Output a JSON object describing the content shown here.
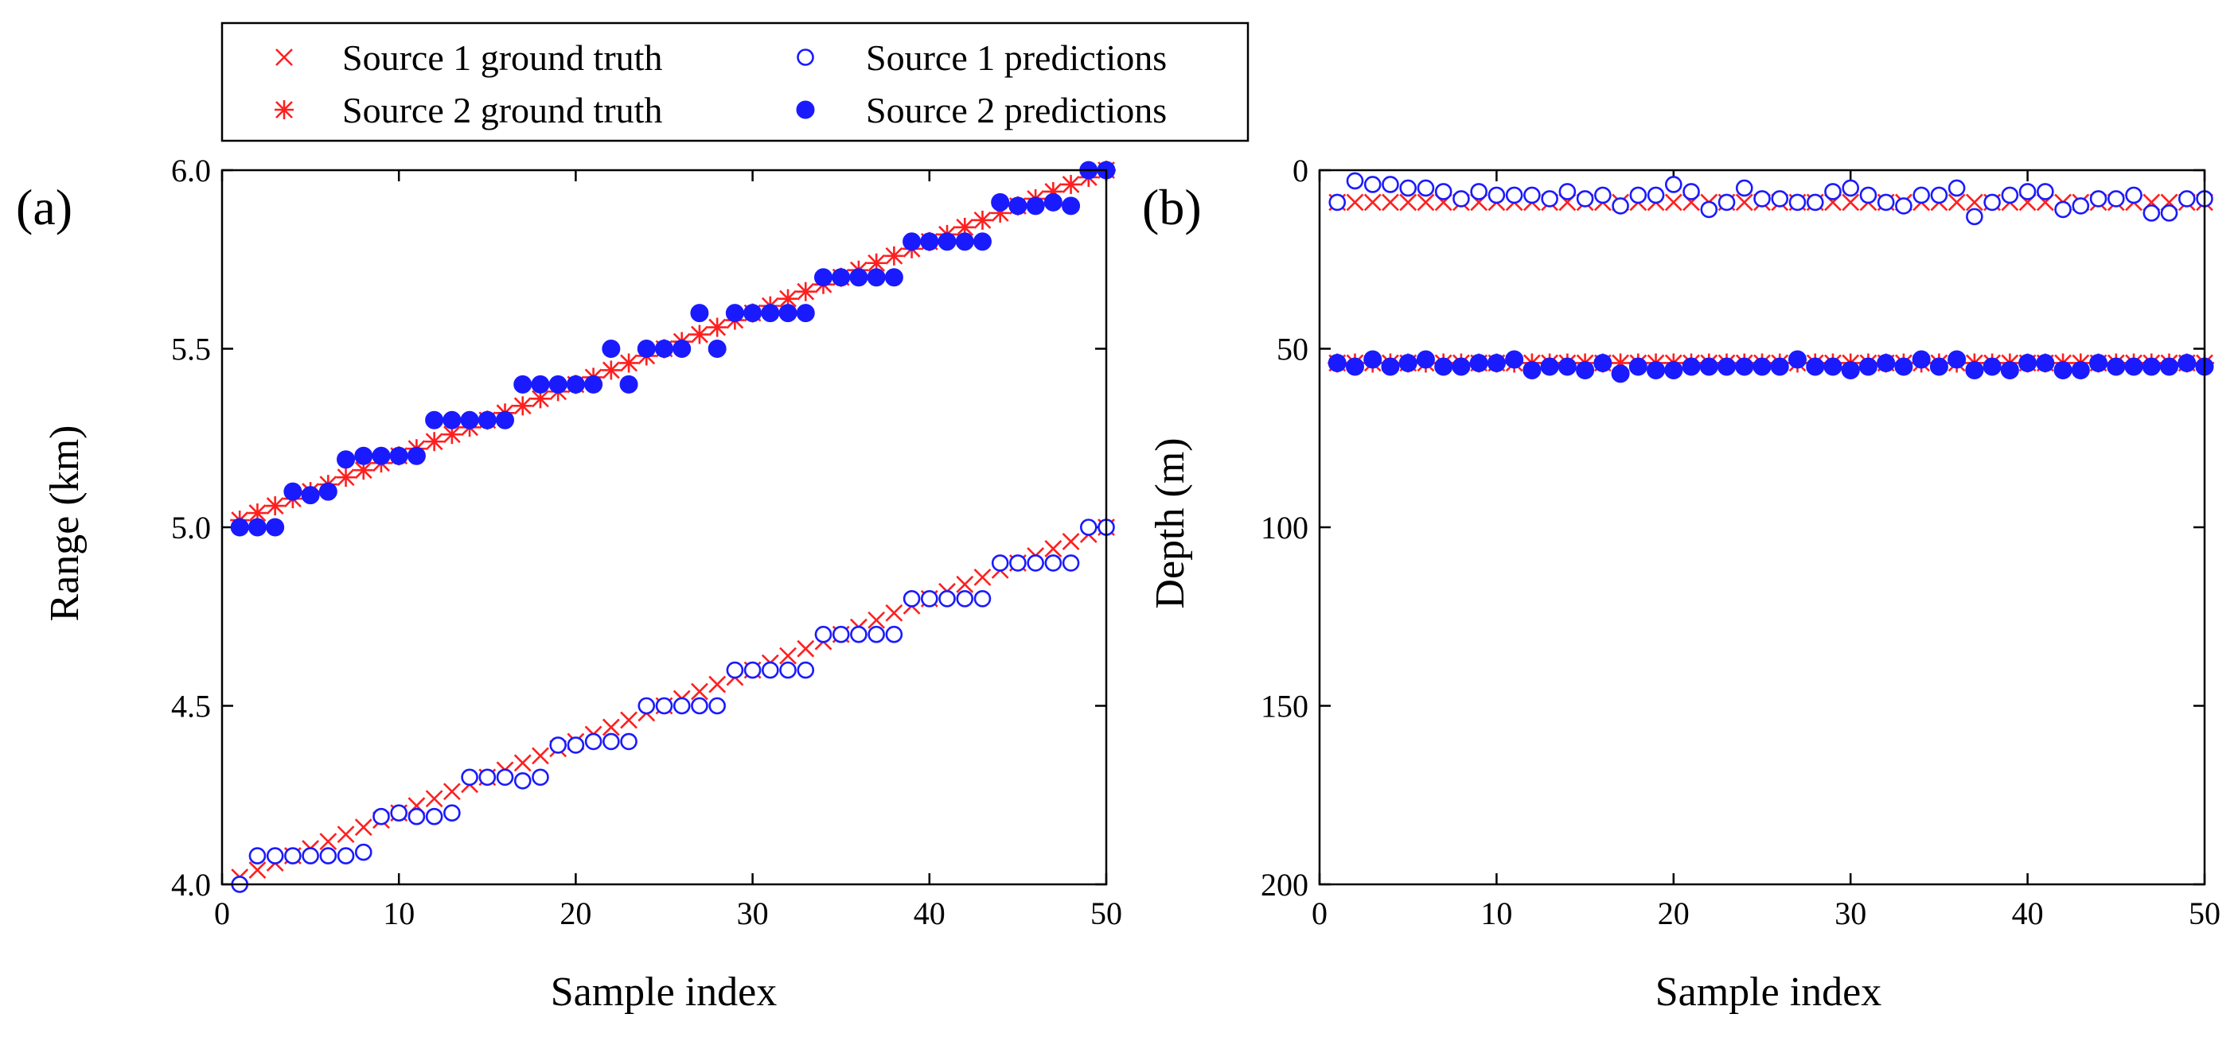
{
  "legend": {
    "entries": [
      {
        "label": "Source 1 ground truth",
        "marker": "x",
        "color": "#ff1f1f"
      },
      {
        "label": "Source 1 predictions",
        "marker": "open-circle",
        "color": "#1a1aff"
      },
      {
        "label": "Source 2 ground truth",
        "marker": "asterisk",
        "color": "#ff1f1f"
      },
      {
        "label": "Source 2 predictions",
        "marker": "filled-circle",
        "color": "#1a1aff"
      }
    ]
  },
  "colors": {
    "ground_truth": "#ff1f1f",
    "predictions": "#1a1aff",
    "axes": "#000000"
  },
  "chart_data": [
    {
      "panel_label": "(a)",
      "type": "scatter",
      "xlabel": "Sample index",
      "ylabel": "Range (km)",
      "xlim": [
        0,
        50
      ],
      "ylim": [
        4.0,
        6.0
      ],
      "xticks": [
        0,
        10,
        20,
        30,
        40,
        50
      ],
      "yticks": [
        4.0,
        4.5,
        5.0,
        5.5,
        6.0
      ],
      "ytick_labels": [
        "4.0",
        "4.5",
        "5.0",
        "5.5",
        "6.0"
      ],
      "inverted_y": false,
      "x": [
        1,
        2,
        3,
        4,
        5,
        6,
        7,
        8,
        9,
        10,
        11,
        12,
        13,
        14,
        15,
        16,
        17,
        18,
        19,
        20,
        21,
        22,
        23,
        24,
        25,
        26,
        27,
        28,
        29,
        30,
        31,
        32,
        33,
        34,
        35,
        36,
        37,
        38,
        39,
        40,
        41,
        42,
        43,
        44,
        45,
        46,
        47,
        48,
        49,
        50
      ],
      "series": [
        {
          "name": "Source 1 ground truth",
          "marker": "x",
          "values": [
            4.02,
            4.04,
            4.06,
            4.08,
            4.1,
            4.12,
            4.14,
            4.16,
            4.18,
            4.2,
            4.22,
            4.24,
            4.26,
            4.28,
            4.3,
            4.32,
            4.34,
            4.36,
            4.38,
            4.4,
            4.42,
            4.44,
            4.46,
            4.48,
            4.5,
            4.52,
            4.54,
            4.56,
            4.58,
            4.6,
            4.62,
            4.64,
            4.66,
            4.68,
            4.7,
            4.72,
            4.74,
            4.76,
            4.78,
            4.8,
            4.82,
            4.84,
            4.86,
            4.88,
            4.9,
            4.92,
            4.94,
            4.96,
            4.98,
            5.0
          ]
        },
        {
          "name": "Source 1 predictions",
          "marker": "open-circle",
          "values": [
            4.0,
            4.08,
            4.08,
            4.08,
            4.08,
            4.08,
            4.08,
            4.09,
            4.19,
            4.2,
            4.19,
            4.19,
            4.2,
            4.3,
            4.3,
            4.3,
            4.29,
            4.3,
            4.39,
            4.39,
            4.4,
            4.4,
            4.4,
            4.5,
            4.5,
            4.5,
            4.5,
            4.5,
            4.6,
            4.6,
            4.6,
            4.6,
            4.6,
            4.7,
            4.7,
            4.7,
            4.7,
            4.7,
            4.8,
            4.8,
            4.8,
            4.8,
            4.8,
            4.9,
            4.9,
            4.9,
            4.9,
            4.9,
            5.0,
            5.0
          ]
        },
        {
          "name": "Source 2 ground truth",
          "marker": "asterisk",
          "values": [
            5.02,
            5.04,
            5.06,
            5.08,
            5.1,
            5.12,
            5.14,
            5.16,
            5.18,
            5.2,
            5.22,
            5.24,
            5.26,
            5.28,
            5.3,
            5.32,
            5.34,
            5.36,
            5.38,
            5.4,
            5.42,
            5.44,
            5.46,
            5.48,
            5.5,
            5.52,
            5.54,
            5.56,
            5.58,
            5.6,
            5.62,
            5.64,
            5.66,
            5.68,
            5.7,
            5.72,
            5.74,
            5.76,
            5.78,
            5.8,
            5.82,
            5.84,
            5.86,
            5.88,
            5.9,
            5.92,
            5.94,
            5.96,
            5.98,
            6.0
          ]
        },
        {
          "name": "Source 2 predictions",
          "marker": "filled-circle",
          "values": [
            5.0,
            5.0,
            5.0,
            5.1,
            5.09,
            5.1,
            5.19,
            5.2,
            5.2,
            5.2,
            5.2,
            5.3,
            5.3,
            5.3,
            5.3,
            5.3,
            5.4,
            5.4,
            5.4,
            5.4,
            5.4,
            5.5,
            5.4,
            5.5,
            5.5,
            5.5,
            5.6,
            5.5,
            5.6,
            5.6,
            5.6,
            5.6,
            5.6,
            5.7,
            5.7,
            5.7,
            5.7,
            5.7,
            5.8,
            5.8,
            5.8,
            5.8,
            5.8,
            5.91,
            5.9,
            5.9,
            5.91,
            5.9,
            6.0,
            6.0
          ]
        }
      ]
    },
    {
      "panel_label": "(b)",
      "type": "scatter",
      "xlabel": "Sample index",
      "ylabel": "Depth (m)",
      "xlim": [
        0,
        50
      ],
      "ylim": [
        200,
        0
      ],
      "xticks": [
        0,
        10,
        20,
        30,
        40,
        50
      ],
      "yticks": [
        0,
        50,
        100,
        150,
        200
      ],
      "ytick_labels": [
        "0",
        "50",
        "100",
        "150",
        "200"
      ],
      "inverted_y": true,
      "x": [
        1,
        2,
        3,
        4,
        5,
        6,
        7,
        8,
        9,
        10,
        11,
        12,
        13,
        14,
        15,
        16,
        17,
        18,
        19,
        20,
        21,
        22,
        23,
        24,
        25,
        26,
        27,
        28,
        29,
        30,
        31,
        32,
        33,
        34,
        35,
        36,
        37,
        38,
        39,
        40,
        41,
        42,
        43,
        44,
        45,
        46,
        47,
        48,
        49,
        50
      ],
      "series": [
        {
          "name": "Source 1 ground truth",
          "marker": "x",
          "values": [
            9,
            9,
            9,
            9,
            9,
            9,
            9,
            9,
            9,
            9,
            9,
            9,
            9,
            9,
            9,
            9,
            9,
            9,
            9,
            9,
            9,
            9,
            9,
            9,
            9,
            9,
            9,
            9,
            9,
            9,
            9,
            9,
            9,
            9,
            9,
            9,
            9,
            9,
            9,
            9,
            9,
            9,
            9,
            9,
            9,
            9,
            9,
            9,
            9,
            9
          ]
        },
        {
          "name": "Source 1 predictions",
          "marker": "open-circle",
          "values": [
            9,
            3,
            4,
            4,
            5,
            5,
            6,
            8,
            6,
            7,
            7,
            7,
            8,
            6,
            8,
            7,
            10,
            7,
            7,
            4,
            6,
            11,
            9,
            5,
            8,
            8,
            9,
            9,
            6,
            5,
            7,
            9,
            10,
            7,
            7,
            5,
            13,
            9,
            7,
            6,
            6,
            11,
            10,
            8,
            8,
            7,
            12,
            12,
            8,
            8
          ]
        },
        {
          "name": "Source 2 ground truth",
          "marker": "asterisk",
          "values": [
            54,
            54,
            54,
            54,
            54,
            54,
            54,
            54,
            54,
            54,
            54,
            54,
            54,
            54,
            54,
            54,
            54,
            54,
            54,
            54,
            54,
            54,
            54,
            54,
            54,
            54,
            54,
            54,
            54,
            54,
            54,
            54,
            54,
            54,
            54,
            54,
            54,
            54,
            54,
            54,
            54,
            54,
            54,
            54,
            54,
            54,
            54,
            54,
            54,
            54
          ]
        },
        {
          "name": "Source 2 predictions",
          "marker": "filled-circle",
          "values": [
            54,
            55,
            53,
            55,
            54,
            53,
            55,
            55,
            54,
            54,
            53,
            56,
            55,
            55,
            56,
            54,
            57,
            55,
            56,
            56,
            55,
            55,
            55,
            55,
            55,
            55,
            53,
            55,
            55,
            56,
            55,
            54,
            55,
            53,
            55,
            53,
            56,
            55,
            56,
            54,
            54,
            56,
            56,
            54,
            55,
            55,
            55,
            55,
            54,
            55
          ]
        }
      ]
    }
  ]
}
